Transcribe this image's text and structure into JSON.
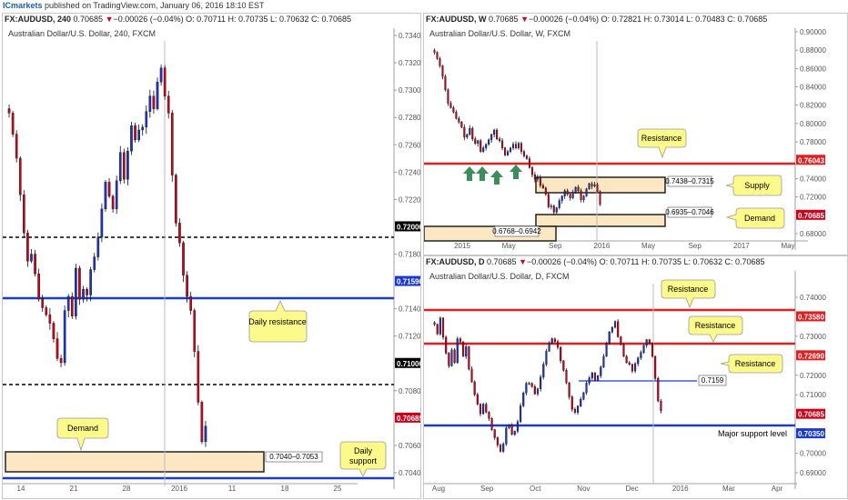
{
  "publisher": {
    "brand": "ICmarkets",
    "text": " published on TradingView.com, January 06, 2016 18:10 EST"
  },
  "panels": [
    {
      "id": "h4",
      "header": {
        "symbol": "FX:AUDUSD, 240",
        "price": "0.70685",
        "change": "−0.00026 (−0.04%)",
        "ohlc": "O: 0.70711  H: 0.70735  L: 0.70632  C: 0.70685"
      },
      "subtitle": "Australian Dollar/U.S. Dollar, 240, FXCM",
      "y_ticks": [
        "0.73400",
        "0.73200",
        "0.73000",
        "0.72800",
        "0.72600",
        "0.72400",
        "0.72200",
        "0.72000",
        "0.71800",
        "0.71590",
        "0.71400",
        "0.71200",
        "0.71000",
        "0.70800",
        "0.70685",
        "0.70600",
        "0.70400"
      ],
      "x_ticks": [
        "14",
        "21",
        "28",
        "2016",
        "11",
        "18",
        "25"
      ],
      "levels": [
        {
          "label": "0.72000",
          "color": "#000000",
          "style": "dashed"
        },
        {
          "label": "0.71590",
          "color": "#1a3bd1",
          "style": "solid"
        },
        {
          "label": "0.71000",
          "color": "#000000",
          "style": "dashed"
        },
        {
          "label": "0.70685",
          "color": "#d0021b",
          "style": "marker"
        }
      ],
      "zone_label": "0.7040–0.7053",
      "callouts": [
        "Daily resistance",
        "Demand",
        "Daily support"
      ]
    },
    {
      "id": "weekly",
      "header": {
        "symbol": "FX:AUDUSD, W",
        "price": "0.70685",
        "change": "−0.00026 (−0.04%)",
        "ohlc": "O: 0.72821  H: 0.73014  L: 0.70483  C: 0.70685"
      },
      "subtitle": "Australian Dollar/U.S. Dollar, W, FXCM",
      "y_ticks": [
        "0.90000",
        "0.88000",
        "0.86000",
        "0.84000",
        "0.82000",
        "0.80000",
        "0.78000",
        "0.76043",
        "0.74000",
        "0.72000",
        "0.70685",
        "0.68000"
      ],
      "x_ticks": [
        "2015",
        "May",
        "Sep",
        "2016",
        "May",
        "Sep",
        "2017",
        "May"
      ],
      "zones": [
        "0.7438–0.7315",
        "0.6935–0.7046",
        "0.6768–0.6942"
      ],
      "callouts": [
        "Resistance",
        "Supply",
        "Demand"
      ]
    },
    {
      "id": "daily",
      "header": {
        "symbol": "FX:AUDUSD, D",
        "price": "0.70685",
        "change": "−0.00026 (−0.04%)",
        "ohlc": "O: 0.70711  H: 0.70735  L: 0.70632  C: 0.70685"
      },
      "subtitle": "Australian Dollar/U.S. Dollar, D, FXCM",
      "y_ticks": [
        "0.74000",
        "0.73580",
        "0.73000",
        "0.72690",
        "0.72000",
        "0.71000",
        "0.70685",
        "0.70350",
        "0.70000",
        "0.69000"
      ],
      "x_ticks": [
        "Aug",
        "Sep",
        "Oct",
        "Nov",
        "Dec",
        "2016",
        "Mar",
        "Apr"
      ],
      "level_label": "0.7159",
      "callouts": [
        "Resistance",
        "Resistance",
        "Resistance",
        "Major support level"
      ]
    }
  ],
  "chart_data": [
    {
      "type": "candlestick",
      "title": "Australian Dollar/U.S. Dollar, 240, FXCM",
      "ylim": [
        0.7035,
        0.7345
      ],
      "levels": [
        0.72,
        0.7159,
        0.71
      ],
      "demand_zone": [
        0.704,
        0.7053
      ],
      "last_price": 0.70685,
      "close_path": [
        0.729,
        0.7275,
        0.7258,
        0.7232,
        0.7205,
        0.7185,
        0.719,
        0.7176,
        0.7158,
        0.7152,
        0.7147,
        0.7141,
        0.713,
        0.7116,
        0.7113,
        0.715,
        0.716,
        0.7146,
        0.718,
        0.7158,
        0.7165,
        0.7161,
        0.7179,
        0.7188,
        0.7202,
        0.7222,
        0.7241,
        0.7231,
        0.7222,
        0.7242,
        0.7262,
        0.7243,
        0.7263,
        0.7281,
        0.7271,
        0.7278,
        0.728,
        0.7291,
        0.7302,
        0.7293,
        0.7312,
        0.7322,
        0.7302,
        0.729,
        0.7246,
        0.7212,
        0.7198,
        0.7175,
        0.716,
        0.715,
        0.7121,
        0.7085,
        0.7057,
        0.7068
      ]
    },
    {
      "type": "candlestick",
      "title": "Australian Dollar/U.S. Dollar, W, FXCM",
      "ylim": [
        0.674,
        0.9
      ],
      "levels": [
        0.76043
      ],
      "zones": [
        [
          0.7315,
          0.7438
        ],
        [
          0.6935,
          0.7046
        ],
        [
          0.6768,
          0.6942
        ]
      ],
      "last_price": 0.70685,
      "close_path": [
        0.877,
        0.87,
        0.862,
        0.85,
        0.835,
        0.82,
        0.815,
        0.81,
        0.803,
        0.799,
        0.793,
        0.782,
        0.785,
        0.792,
        0.78,
        0.775,
        0.778,
        0.766,
        0.77,
        0.774,
        0.779,
        0.785,
        0.79,
        0.78,
        0.778,
        0.77,
        0.762,
        0.766,
        0.77,
        0.774,
        0.77,
        0.775,
        0.766,
        0.761,
        0.758,
        0.748,
        0.74,
        0.735,
        0.737,
        0.728,
        0.725,
        0.718,
        0.704,
        0.705,
        0.698,
        0.703,
        0.711,
        0.716,
        0.722,
        0.718,
        0.714,
        0.72,
        0.726,
        0.722,
        0.712,
        0.716,
        0.724,
        0.73,
        0.727,
        0.729,
        0.721,
        0.7069
      ]
    },
    {
      "type": "candlestick",
      "title": "Australian Dollar/U.S. Dollar, D, FXCM",
      "ylim": [
        0.6875,
        0.7425
      ],
      "levels": [
        0.7358,
        0.7269,
        0.7159,
        0.7035
      ],
      "last_price": 0.70685,
      "close_path": [
        0.734,
        0.731,
        0.736,
        0.73,
        0.725,
        0.721,
        0.726,
        0.722,
        0.7295,
        0.7285,
        0.724,
        0.727,
        0.72,
        0.716,
        0.712,
        0.709,
        0.706,
        0.709,
        0.7065,
        0.7045,
        0.701,
        0.6985,
        0.6962,
        0.6942,
        0.6965,
        0.7015,
        0.7025,
        0.6995,
        0.7005,
        0.7035,
        0.7085,
        0.7125,
        0.7155,
        0.7155,
        0.7145,
        0.7122,
        0.7138,
        0.7175,
        0.7215,
        0.7256,
        0.7282,
        0.7295,
        0.7286,
        0.7268,
        0.7226,
        0.7196,
        0.7157,
        0.7113,
        0.7074,
        0.7064,
        0.7084,
        0.7105,
        0.7126,
        0.7156,
        0.7172,
        0.7188,
        0.7165,
        0.7179,
        0.7206,
        0.724,
        0.7281,
        0.7316,
        0.7331,
        0.7349,
        0.7301,
        0.7276,
        0.724,
        0.722,
        0.7215,
        0.7194,
        0.7217,
        0.7235,
        0.7252,
        0.7274,
        0.7292,
        0.7281,
        0.724,
        0.7171,
        0.71,
        0.7069
      ]
    }
  ]
}
